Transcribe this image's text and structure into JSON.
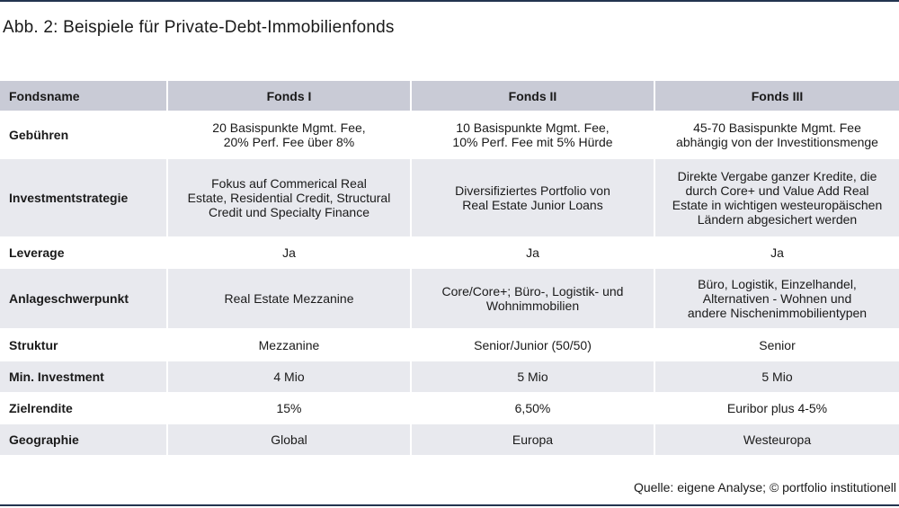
{
  "title": "Abb. 2: Beispiele für Private-Debt-Immobilienfonds",
  "table": {
    "headers": [
      "Fondsname",
      "Fonds I",
      "Fonds II",
      "Fonds III"
    ],
    "rows": [
      {
        "label": "Gebühren",
        "cells": [
          "20 Basispunkte Mgmt. Fee,\n20% Perf. Fee über 8%",
          "10 Basispunkte Mgmt. Fee,\n10% Perf. Fee mit 5% Hürde",
          "45-70 Basispunkte Mgmt. Fee\nabhängig von der Investitionsmenge"
        ]
      },
      {
        "label": "Investmentstrategie",
        "cells": [
          "Fokus auf Commerical Real\nEstate, Residential Credit, Structural\nCredit und Specialty Finance",
          "Diversifiziertes Portfolio von\nReal Estate Junior Loans",
          "Direkte Vergabe ganzer Kredite, die\ndurch Core+ und Value Add Real\nEstate in wichtigen westeuropäischen\nLändern abgesichert werden"
        ]
      },
      {
        "label": "Leverage",
        "cells": [
          "Ja",
          "Ja",
          "Ja"
        ]
      },
      {
        "label": "Anlageschwerpunkt",
        "cells": [
          "Real Estate Mezzanine",
          "Core/Core+; Büro-, Logistik- und\nWohnimmobilien",
          "Büro, Logistik, Einzelhandel,\nAlternativen - Wohnen und\nandere Nischenimmobilientypen"
        ]
      },
      {
        "label": "Struktur",
        "cells": [
          "Mezzanine",
          "Senior/Junior (50/50)",
          "Senior"
        ]
      },
      {
        "label": "Min. Investment",
        "cells": [
          "4 Mio",
          "5 Mio",
          "5 Mio"
        ]
      },
      {
        "label": "Zielrendite",
        "cells": [
          "15%",
          "6,50%",
          "Euribor plus 4-5%"
        ]
      },
      {
        "label": "Geographie",
        "cells": [
          "Global",
          "Europa",
          "Westeuropa"
        ]
      }
    ]
  },
  "source": "Quelle: eigene Analyse; © portfolio institutionell",
  "colors": {
    "rule": "#23344f",
    "header_bg": "#c9cbd6",
    "stripe_bg": "#e8e9ee"
  }
}
